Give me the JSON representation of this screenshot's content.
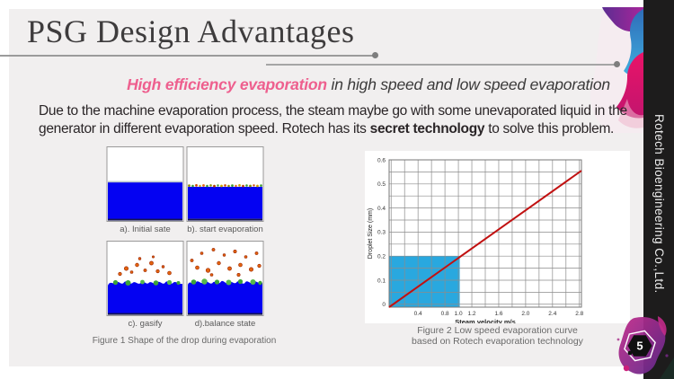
{
  "slide": {
    "title": "PSG Design Advantages",
    "page_number": "5",
    "sidebar_text": "Rotech Bioengineering Co.,Ltd.",
    "subtitle": {
      "highlight": "High efficiency evaporation",
      "rest": " in high speed and low speed evaporation"
    },
    "body": {
      "line1": "Due to the machine evaporation process, the steam maybe go with some unevaporated liquid in the",
      "line2_pre": "generator in different evaporation speed. Rotech has its ",
      "line2_bold": "secret technology",
      "line2_post": " to solve this problem."
    }
  },
  "figure1": {
    "panels": [
      {
        "label": "a). Initial sate"
      },
      {
        "label": "b). start evaporation"
      },
      {
        "label": "c). gasify"
      },
      {
        "label": "d).balance state"
      }
    ],
    "caption": "Figure 1 Shape of the drop during evaporation"
  },
  "figure2": {
    "caption_line1": "Figure 2 Low speed evaporation curve",
    "caption_line2": "based on Rotech evaporation technology"
  },
  "chart_data": {
    "type": "line",
    "title": "",
    "xlabel": "Steam velocity m/s",
    "ylabel": "Droplet Size (mm)",
    "xlim": [
      -0.03,
      2.83
    ],
    "ylim": [
      -0.012,
      0.6
    ],
    "xticks": [
      0.4,
      0.8,
      1.0,
      1.2,
      1.6,
      2.0,
      2.4,
      2.8
    ],
    "yticks": [
      0,
      0.1,
      0.2,
      0.3,
      0.4,
      0.5,
      0.6
    ],
    "x_grid_step": 0.2,
    "y_grid_step": 0.05,
    "grid": true,
    "grid_color": "#8c8c8c",
    "legend": "none",
    "series": [
      {
        "name": "droplet size vs steam velocity",
        "color": "#c11111",
        "points": [
          [
            -0.03,
            -0.012
          ],
          [
            2.83,
            0.555
          ]
        ],
        "passes_through": [
          [
            1.0,
            0.2
          ]
        ]
      }
    ],
    "highlight_region": {
      "x0": -0.03,
      "x1": 1.02,
      "y0": -0.012,
      "y1": 0.2,
      "color": "#29a8df",
      "note": "low speed operating region"
    }
  },
  "colors": {
    "slide_bg": "#f1efef",
    "strip_black": "#1d1c1c",
    "accent_pink": "#ee5f8e",
    "liquid_blue": "#0402f2",
    "chart_line_red": "#c11111",
    "chart_highlight_blue": "#29a8df"
  }
}
